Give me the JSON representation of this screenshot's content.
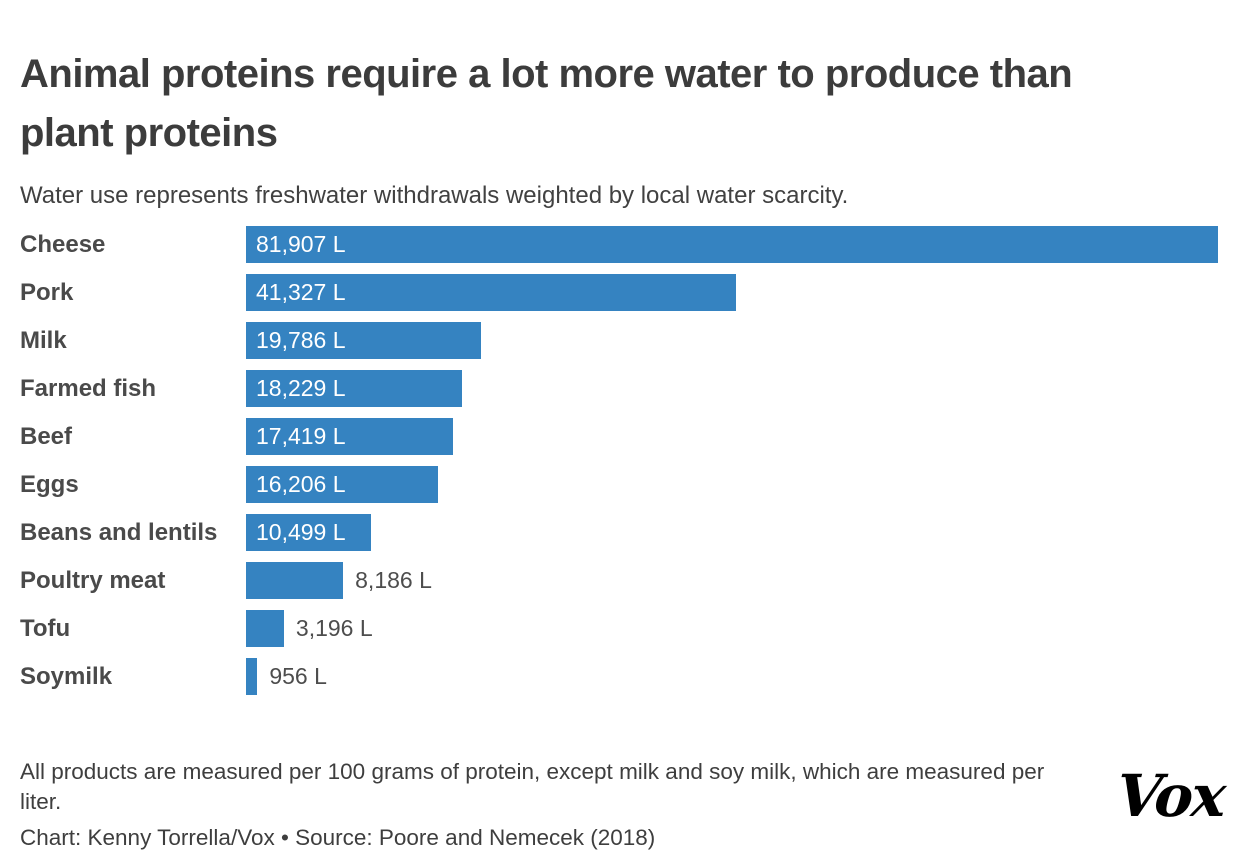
{
  "header": {
    "title": "Animal proteins require a lot more water to produce than plant proteins",
    "subtitle": "Water use represents freshwater withdrawals weighted by local water scarcity."
  },
  "chart_data": {
    "type": "bar",
    "orientation": "horizontal",
    "title": "Animal proteins require a lot more water to produce than plant proteins",
    "subtitle": "Water use represents freshwater withdrawals weighted by local water scarcity.",
    "unit": "liters of water",
    "categories": [
      "Cheese",
      "Pork",
      "Milk",
      "Farmed fish",
      "Beef",
      "Eggs",
      "Beans and lentils",
      "Poultry meat",
      "Tofu",
      "Soymilk"
    ],
    "values": [
      81907,
      41327,
      19786,
      18229,
      17419,
      16206,
      10499,
      8186,
      3196,
      956
    ],
    "value_labels": [
      "81,907 L",
      "41,327 L",
      "19,786 L",
      "18,229 L",
      "17,419 L",
      "16,206 L",
      "10,499 L",
      "8,186 L",
      "3,196 L",
      "956 L"
    ],
    "label_inside": [
      true,
      true,
      true,
      true,
      true,
      true,
      true,
      false,
      false,
      false
    ],
    "xlim": [
      0,
      81907
    ],
    "grid": false,
    "legend": false,
    "bar_color": "#3583c1"
  },
  "footer": {
    "note": "All products are measured per 100 grams of protein, except milk and soy milk, which are measured per liter.",
    "credit": "Chart: Kenny Torrella/Vox • Source: Poore and Nemecek (2018)",
    "logo": "Vox"
  },
  "colors": {
    "bar": "#3583c1",
    "title_text": "#3c3c3c",
    "body_text": "#414141",
    "label_text": "#4a4a4a",
    "value_outside_text": "#4d4d4d",
    "value_inside_text": "#ffffff",
    "background": "#ffffff",
    "logo_text": "#000000"
  }
}
